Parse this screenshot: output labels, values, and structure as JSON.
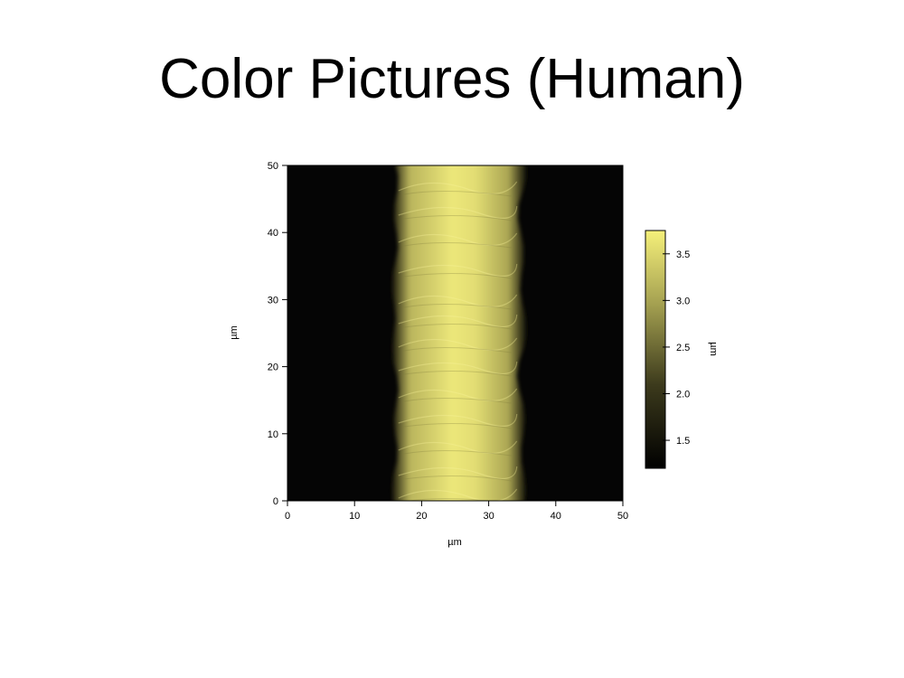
{
  "slide": {
    "title": "Color Pictures (Human)"
  },
  "chart_data": {
    "type": "heatmap",
    "title": "",
    "xlabel": "µm",
    "ylabel": "µm",
    "xlim": [
      0,
      50
    ],
    "ylim": [
      0,
      50
    ],
    "xticks": [
      0,
      10,
      20,
      30,
      40,
      50
    ],
    "yticks": [
      0,
      10,
      20,
      30,
      40,
      50
    ],
    "x_tick_labels": [
      "0",
      "10",
      "20",
      "30",
      "40",
      "50"
    ],
    "y_tick_labels": [
      "0",
      "10",
      "20",
      "30",
      "40",
      "50"
    ],
    "feature": {
      "description_free": true,
      "x_left": 16,
      "x_right": 35,
      "peak_value": 3.7,
      "background_value": 1.2
    },
    "colorbar": {
      "label": "µm",
      "range": [
        1.2,
        3.75
      ],
      "ticks": [
        1.5,
        2.0,
        2.5,
        3.0,
        3.5
      ],
      "tick_labels": [
        "1.5",
        "2.0",
        "2.5",
        "3.0",
        "3.5"
      ],
      "colors": [
        "#000000",
        "#f5f07a"
      ]
    },
    "grid": false,
    "legend": "none"
  }
}
